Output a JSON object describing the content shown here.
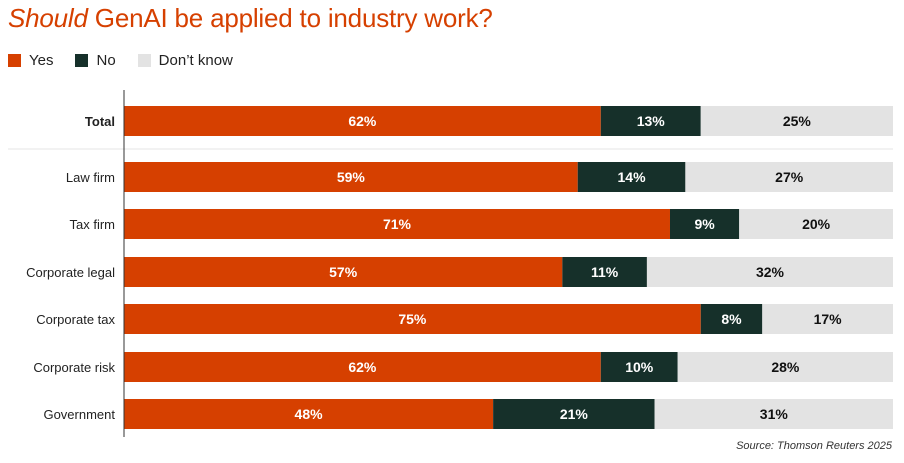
{
  "title": {
    "emphasis": "Should",
    "rest": " GenAI be applied to industry work?"
  },
  "legend": [
    {
      "label": "Yes",
      "color": "#d64000"
    },
    {
      "label": "No",
      "color": "#16302a"
    },
    {
      "label": "Don’t know",
      "color": "#e3e3e3"
    }
  ],
  "source": "Source: Thomson Reuters 2025",
  "chart_data": {
    "type": "bar",
    "orientation": "horizontal",
    "stacked": true,
    "title": "Should GenAI be applied to industry work?",
    "categories": [
      "Total",
      "Law firm",
      "Tax firm",
      "Corporate legal",
      "Corporate tax",
      "Corporate risk",
      "Government"
    ],
    "series": [
      {
        "name": "Yes",
        "values": [
          62,
          59,
          71,
          57,
          75,
          62,
          48
        ],
        "color": "#d64000",
        "label_color": "#ffffff"
      },
      {
        "name": "No",
        "values": [
          13,
          14,
          9,
          11,
          8,
          10,
          21
        ],
        "color": "#16302a",
        "label_color": "#ffffff"
      },
      {
        "name": "Don’t know",
        "values": [
          25,
          27,
          20,
          32,
          17,
          28,
          31
        ],
        "color": "#e3e3e3",
        "label_color": "#111111"
      }
    ],
    "xlim": [
      0,
      100
    ],
    "value_suffix": "%",
    "bold_categories": [
      "Total"
    ],
    "legend_position": "top-left",
    "grid": false
  }
}
